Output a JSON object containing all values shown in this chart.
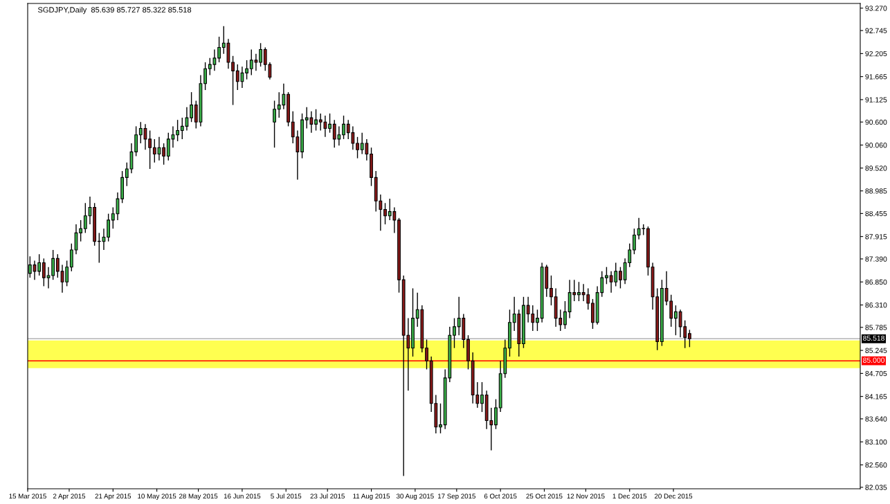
{
  "chart_data": {
    "type": "candlestick",
    "title": "SGDJPY,Daily  85.639 85.727 85.322 85.518",
    "x": [
      "2015-03-16",
      "2015-03-18",
      "2015-03-20",
      "2015-03-22",
      "2015-03-24",
      "2015-03-26",
      "2015-03-28",
      "2015-03-30",
      "2015-04-01",
      "2015-04-03",
      "2015-04-05",
      "2015-04-07",
      "2015-04-09",
      "2015-04-11",
      "2015-04-13",
      "2015-04-15",
      "2015-04-17",
      "2015-04-19",
      "2015-04-21",
      "2015-04-23",
      "2015-04-25",
      "2015-04-27",
      "2015-04-29",
      "2015-05-01",
      "2015-05-03",
      "2015-05-05",
      "2015-05-07",
      "2015-05-09",
      "2015-05-11",
      "2015-05-13",
      "2015-05-15",
      "2015-05-17",
      "2015-05-19",
      "2015-05-21",
      "2015-05-23",
      "2015-05-25",
      "2015-05-27",
      "2015-05-29",
      "2015-05-31",
      "2015-06-02",
      "2015-06-04",
      "2015-06-06",
      "2015-06-08",
      "2015-06-10",
      "2015-06-12",
      "2015-06-14",
      "2015-06-16",
      "2015-06-18",
      "2015-06-20",
      "2015-06-22",
      "2015-06-24",
      "2015-06-26",
      "2015-06-28",
      "2015-06-30",
      "2015-07-02",
      "2015-07-04",
      "2015-07-06",
      "2015-07-08",
      "2015-07-10",
      "2015-07-12",
      "2015-07-14",
      "2015-07-16",
      "2015-07-18",
      "2015-07-20",
      "2015-07-22",
      "2015-07-24",
      "2015-07-26",
      "2015-07-28",
      "2015-07-30",
      "2015-08-01",
      "2015-08-03",
      "2015-08-05",
      "2015-08-07",
      "2015-08-09",
      "2015-08-11",
      "2015-08-13",
      "2015-08-15",
      "2015-08-17",
      "2015-08-19",
      "2015-08-21",
      "2015-08-23",
      "2015-08-25",
      "2015-08-27",
      "2015-08-29",
      "2015-08-31",
      "2015-09-02",
      "2015-09-04",
      "2015-09-06",
      "2015-09-08",
      "2015-09-10",
      "2015-09-12",
      "2015-09-14",
      "2015-09-16",
      "2015-09-18",
      "2015-09-20",
      "2015-09-22",
      "2015-09-24",
      "2015-09-26",
      "2015-09-28",
      "2015-09-30",
      "2015-10-02",
      "2015-10-04",
      "2015-10-06",
      "2015-10-08",
      "2015-10-10",
      "2015-10-12",
      "2015-10-14",
      "2015-10-16",
      "2015-10-18",
      "2015-10-20",
      "2015-10-22",
      "2015-10-24",
      "2015-10-26",
      "2015-10-28",
      "2015-10-30",
      "2015-11-01",
      "2015-11-03",
      "2015-11-05",
      "2015-11-07",
      "2015-11-09",
      "2015-11-11",
      "2015-11-13",
      "2015-11-15",
      "2015-11-17",
      "2015-11-19",
      "2015-11-21",
      "2015-11-23",
      "2015-11-25",
      "2015-11-27",
      "2015-11-29",
      "2015-12-01",
      "2015-12-03",
      "2015-12-05",
      "2015-12-07",
      "2015-12-09",
      "2015-12-11",
      "2015-12-13",
      "2015-12-15",
      "2015-12-17",
      "2015-12-19",
      "2015-12-21",
      "2015-12-23",
      "2015-12-25",
      "2015-12-27"
    ],
    "ohlc": [
      [
        87.05,
        87.45,
        86.95,
        87.25
      ],
      [
        87.25,
        87.35,
        86.9,
        87.1
      ],
      [
        87.1,
        87.5,
        87.0,
        87.3
      ],
      [
        87.3,
        87.4,
        86.75,
        86.95
      ],
      [
        86.95,
        87.2,
        86.7,
        87.0
      ],
      [
        87.0,
        87.6,
        86.9,
        87.4
      ],
      [
        87.4,
        87.5,
        86.95,
        87.1
      ],
      [
        87.1,
        87.25,
        86.6,
        86.85
      ],
      [
        86.85,
        87.35,
        86.75,
        87.2
      ],
      [
        87.2,
        87.75,
        87.1,
        87.6
      ],
      [
        87.6,
        88.2,
        87.5,
        88.0
      ],
      [
        88.0,
        88.3,
        87.8,
        88.1
      ],
      [
        88.1,
        88.7,
        88.0,
        88.4
      ],
      [
        88.4,
        88.85,
        88.2,
        88.6
      ],
      [
        88.6,
        88.7,
        87.7,
        87.8
      ],
      [
        87.8,
        88.0,
        87.3,
        87.8
      ],
      [
        87.8,
        88.1,
        87.6,
        87.9
      ],
      [
        87.9,
        88.45,
        87.8,
        88.3
      ],
      [
        88.3,
        88.6,
        88.1,
        88.45
      ],
      [
        88.45,
        88.95,
        88.3,
        88.8
      ],
      [
        88.8,
        89.45,
        88.7,
        89.3
      ],
      [
        89.3,
        89.65,
        89.1,
        89.5
      ],
      [
        89.5,
        90.1,
        89.4,
        89.9
      ],
      [
        89.9,
        90.5,
        89.8,
        90.3
      ],
      [
        90.3,
        90.6,
        90.1,
        90.45
      ],
      [
        90.45,
        90.55,
        89.95,
        90.2
      ],
      [
        90.2,
        90.4,
        89.5,
        90.0
      ],
      [
        90.0,
        90.2,
        89.65,
        89.85
      ],
      [
        89.85,
        90.25,
        89.7,
        90.0
      ],
      [
        90.0,
        90.1,
        89.6,
        89.8
      ],
      [
        89.8,
        90.35,
        89.7,
        90.2
      ],
      [
        90.2,
        90.5,
        90.0,
        90.3
      ],
      [
        90.3,
        90.65,
        90.15,
        90.4
      ],
      [
        90.4,
        90.7,
        90.2,
        90.5
      ],
      [
        90.5,
        90.95,
        90.4,
        90.7
      ],
      [
        90.7,
        91.3,
        90.6,
        91.0
      ],
      [
        91.0,
        91.1,
        90.45,
        90.6
      ],
      [
        90.6,
        91.7,
        90.5,
        91.5
      ],
      [
        91.5,
        92.0,
        91.35,
        91.85
      ],
      [
        91.85,
        92.1,
        91.7,
        91.95
      ],
      [
        91.95,
        92.3,
        91.8,
        92.1
      ],
      [
        92.1,
        92.6,
        92.0,
        92.35
      ],
      [
        92.35,
        92.85,
        92.2,
        92.45
      ],
      [
        92.45,
        92.55,
        91.85,
        92.0
      ],
      [
        92.0,
        92.15,
        91.0,
        91.8
      ],
      [
        91.8,
        91.95,
        91.35,
        91.55
      ],
      [
        91.55,
        91.9,
        91.4,
        91.75
      ],
      [
        91.75,
        92.05,
        91.6,
        91.85
      ],
      [
        91.85,
        92.3,
        91.7,
        92.05
      ],
      [
        92.05,
        92.2,
        91.8,
        92.0
      ],
      [
        92.0,
        92.45,
        91.9,
        92.3
      ],
      [
        92.3,
        92.35,
        91.8,
        91.95
      ],
      [
        91.95,
        92.0,
        91.6,
        91.65
      ],
      [
        90.6,
        91.1,
        90.0,
        90.9
      ],
      [
        90.9,
        91.3,
        90.7,
        91.0
      ],
      [
        91.0,
        91.5,
        90.9,
        91.25
      ],
      [
        91.25,
        91.3,
        90.5,
        90.6
      ],
      [
        90.6,
        90.85,
        90.1,
        90.25
      ],
      [
        90.25,
        90.4,
        89.25,
        89.9
      ],
      [
        89.9,
        90.8,
        89.75,
        90.65
      ],
      [
        90.65,
        90.95,
        90.45,
        90.7
      ],
      [
        90.7,
        90.85,
        90.35,
        90.55
      ],
      [
        90.55,
        90.9,
        90.4,
        90.65
      ],
      [
        90.65,
        90.8,
        90.4,
        90.6
      ],
      [
        90.6,
        90.75,
        90.25,
        90.45
      ],
      [
        90.45,
        90.8,
        90.35,
        90.55
      ],
      [
        90.55,
        90.65,
        90.0,
        90.2
      ],
      [
        90.2,
        90.5,
        90.05,
        90.3
      ],
      [
        90.3,
        90.75,
        90.2,
        90.55
      ],
      [
        90.55,
        90.65,
        90.2,
        90.35
      ],
      [
        90.35,
        90.5,
        89.95,
        90.1
      ],
      [
        90.1,
        90.25,
        89.75,
        89.95
      ],
      [
        89.95,
        90.35,
        89.85,
        90.1
      ],
      [
        90.1,
        90.2,
        89.7,
        89.85
      ],
      [
        89.85,
        90.0,
        89.1,
        89.3
      ],
      [
        89.3,
        89.45,
        88.5,
        88.75
      ],
      [
        88.75,
        88.9,
        88.05,
        88.55
      ],
      [
        88.55,
        88.7,
        88.2,
        88.4
      ],
      [
        88.4,
        88.8,
        88.3,
        88.5
      ],
      [
        88.5,
        88.6,
        88.0,
        88.3
      ],
      [
        88.3,
        88.35,
        86.6,
        86.9
      ],
      [
        86.9,
        87.0,
        82.3,
        85.6
      ],
      [
        85.6,
        86.0,
        84.3,
        85.3
      ],
      [
        85.3,
        86.7,
        85.1,
        86.0
      ],
      [
        86.0,
        86.6,
        85.8,
        86.2
      ],
      [
        86.2,
        86.3,
        85.2,
        85.3
      ],
      [
        85.3,
        85.5,
        84.8,
        85.0
      ],
      [
        85.0,
        85.1,
        83.8,
        84.0
      ],
      [
        84.0,
        84.2,
        83.3,
        83.45
      ],
      [
        83.45,
        84.0,
        83.3,
        83.5
      ],
      [
        83.5,
        84.8,
        83.4,
        84.6
      ],
      [
        84.6,
        85.8,
        84.5,
        85.6
      ],
      [
        85.6,
        86.0,
        85.3,
        85.8
      ],
      [
        85.8,
        86.5,
        85.6,
        86.0
      ],
      [
        86.0,
        86.1,
        85.3,
        85.5
      ],
      [
        85.5,
        85.6,
        84.8,
        85.0
      ],
      [
        85.0,
        85.2,
        84.0,
        84.2
      ],
      [
        84.2,
        84.5,
        83.9,
        84.0
      ],
      [
        84.0,
        84.5,
        83.8,
        84.2
      ],
      [
        84.2,
        84.3,
        83.4,
        83.6
      ],
      [
        83.6,
        83.9,
        82.9,
        83.5
      ],
      [
        83.5,
        84.1,
        83.4,
        83.9
      ],
      [
        83.9,
        85.0,
        83.8,
        84.7
      ],
      [
        84.7,
        85.5,
        84.6,
        85.3
      ],
      [
        85.3,
        86.2,
        85.1,
        85.9
      ],
      [
        85.9,
        86.5,
        85.7,
        86.1
      ],
      [
        86.1,
        86.2,
        85.1,
        85.4
      ],
      [
        85.4,
        86.5,
        85.3,
        86.3
      ],
      [
        86.3,
        86.5,
        85.9,
        86.1
      ],
      [
        86.1,
        86.3,
        85.7,
        85.9
      ],
      [
        85.9,
        86.2,
        85.7,
        86.0
      ],
      [
        86.0,
        87.3,
        85.9,
        87.2
      ],
      [
        87.2,
        87.25,
        86.5,
        86.7
      ],
      [
        86.7,
        87.0,
        86.3,
        86.5
      ],
      [
        86.5,
        86.7,
        85.8,
        86.0
      ],
      [
        86.0,
        86.2,
        85.7,
        85.85
      ],
      [
        85.85,
        86.4,
        85.75,
        86.15
      ],
      [
        86.15,
        86.9,
        86.0,
        86.6
      ],
      [
        86.6,
        86.9,
        86.4,
        86.55
      ],
      [
        86.55,
        86.85,
        86.4,
        86.6
      ],
      [
        86.6,
        86.8,
        86.4,
        86.55
      ],
      [
        86.55,
        86.7,
        86.2,
        86.35
      ],
      [
        86.35,
        86.45,
        85.75,
        85.9
      ],
      [
        85.9,
        86.75,
        85.85,
        86.6
      ],
      [
        86.6,
        87.1,
        86.5,
        86.95
      ],
      [
        86.95,
        87.2,
        86.8,
        87.0
      ],
      [
        87.0,
        87.1,
        86.6,
        86.85
      ],
      [
        86.85,
        87.3,
        86.75,
        87.1
      ],
      [
        87.1,
        87.2,
        86.7,
        86.9
      ],
      [
        86.9,
        87.4,
        86.8,
        87.3
      ],
      [
        87.3,
        87.75,
        87.2,
        87.6
      ],
      [
        87.6,
        88.1,
        87.5,
        87.95
      ],
      [
        87.95,
        88.35,
        87.85,
        88.1
      ],
      [
        88.1,
        88.2,
        87.95,
        88.1
      ],
      [
        88.1,
        88.15,
        87.0,
        87.2
      ],
      [
        87.2,
        87.3,
        86.2,
        86.5
      ],
      [
        86.5,
        86.7,
        85.25,
        85.45
      ],
      [
        85.45,
        86.9,
        85.35,
        86.7
      ],
      [
        86.7,
        87.1,
        86.3,
        86.4
      ],
      [
        86.4,
        86.55,
        85.8,
        86.0
      ],
      [
        86.0,
        86.3,
        85.6,
        86.15
      ],
      [
        86.15,
        86.2,
        85.55,
        85.8
      ],
      [
        85.8,
        85.95,
        85.3,
        85.55
      ],
      [
        85.639,
        85.727,
        85.322,
        85.518
      ]
    ],
    "colors": [
      "#3cb44b",
      "#8b1a1a",
      "#3cb44b",
      "#8b1a1a",
      "#3cb44b",
      "#3cb44b",
      "#8b1a1a",
      "#8b1a1a",
      "#3cb44b",
      "#3cb44b",
      "#3cb44b",
      "#3cb44b",
      "#3cb44b",
      "#3cb44b",
      "#8b1a1a",
      "#3cb44b",
      "#3cb44b",
      "#3cb44b",
      "#3cb44b",
      "#3cb44b",
      "#3cb44b",
      "#3cb44b",
      "#3cb44b",
      "#3cb44b",
      "#3cb44b",
      "#8b1a1a",
      "#8b1a1a",
      "#8b1a1a",
      "#3cb44b",
      "#8b1a1a",
      "#3cb44b",
      "#3cb44b",
      "#3cb44b",
      "#3cb44b",
      "#3cb44b",
      "#3cb44b",
      "#8b1a1a",
      "#3cb44b",
      "#3cb44b",
      "#3cb44b",
      "#3cb44b",
      "#3cb44b",
      "#3cb44b",
      "#8b1a1a",
      "#8b1a1a",
      "#8b1a1a",
      "#3cb44b",
      "#3cb44b",
      "#3cb44b",
      "#8b1a1a",
      "#3cb44b",
      "#8b1a1a",
      "#8b1a1a",
      "#3cb44b",
      "#3cb44b",
      "#3cb44b",
      "#8b1a1a",
      "#8b1a1a",
      "#8b1a1a",
      "#3cb44b",
      "#3cb44b",
      "#8b1a1a",
      "#3cb44b",
      "#8b1a1a",
      "#8b1a1a",
      "#3cb44b",
      "#8b1a1a",
      "#3cb44b",
      "#3cb44b",
      "#8b1a1a",
      "#8b1a1a",
      "#8b1a1a",
      "#3cb44b",
      "#8b1a1a",
      "#8b1a1a",
      "#8b1a1a",
      "#8b1a1a",
      "#8b1a1a",
      "#3cb44b",
      "#8b1a1a",
      "#8b1a1a",
      "#8b1a1a",
      "#8b1a1a",
      "#3cb44b",
      "#3cb44b",
      "#8b1a1a",
      "#8b1a1a",
      "#8b1a1a",
      "#8b1a1a",
      "#3cb44b",
      "#3cb44b",
      "#3cb44b",
      "#3cb44b",
      "#3cb44b",
      "#8b1a1a",
      "#8b1a1a",
      "#8b1a1a",
      "#8b1a1a",
      "#3cb44b",
      "#8b1a1a",
      "#8b1a1a",
      "#3cb44b",
      "#3cb44b",
      "#3cb44b",
      "#3cb44b",
      "#3cb44b",
      "#8b1a1a",
      "#3cb44b",
      "#8b1a1a",
      "#8b1a1a",
      "#3cb44b",
      "#3cb44b",
      "#8b1a1a",
      "#8b1a1a",
      "#8b1a1a",
      "#8b1a1a",
      "#3cb44b",
      "#3cb44b",
      "#8b1a1a",
      "#3cb44b",
      "#8b1a1a",
      "#8b1a1a",
      "#8b1a1a",
      "#3cb44b",
      "#3cb44b",
      "#3cb44b",
      "#8b1a1a",
      "#3cb44b",
      "#8b1a1a",
      "#3cb44b",
      "#3cb44b",
      "#3cb44b",
      "#3cb44b",
      "#3cb44b",
      "#8b1a1a",
      "#8b1a1a",
      "#8b1a1a",
      "#3cb44b",
      "#8b1a1a",
      "#8b1a1a",
      "#3cb44b",
      "#8b1a1a",
      "#8b1a1a",
      "#8b1a1a"
    ],
    "xlim": [
      "2015-03-15",
      "2016-03-10"
    ],
    "xticks": [
      {
        "value": "2015-03-15",
        "label": "15 Mar 2015"
      },
      {
        "value": "2015-04-02",
        "label": "2 Apr 2015"
      },
      {
        "value": "2015-04-21",
        "label": "21 Apr 2015"
      },
      {
        "value": "2015-05-10",
        "label": "10 May 2015"
      },
      {
        "value": "2015-05-28",
        "label": "28 May 2015"
      },
      {
        "value": "2015-06-16",
        "label": "16 Jun 2015"
      },
      {
        "value": "2015-07-05",
        "label": "5 Jul 2015"
      },
      {
        "value": "2015-07-23",
        "label": "23 Jul 2015"
      },
      {
        "value": "2015-08-11",
        "label": "11 Aug 2015"
      },
      {
        "value": "2015-08-30",
        "label": "30 Aug 2015"
      },
      {
        "value": "2015-09-17",
        "label": "17 Sep 2015"
      },
      {
        "value": "2015-10-06",
        "label": "6 Oct 2015"
      },
      {
        "value": "2015-10-25",
        "label": "25 Oct 2015"
      },
      {
        "value": "2015-11-12",
        "label": "12 Nov 2015"
      },
      {
        "value": "2015-12-01",
        "label": "1 Dec 2015"
      },
      {
        "value": "2015-12-20",
        "label": "20 Dec 2015"
      }
    ],
    "ylim": [
      82.0,
      93.38
    ],
    "yticks": [
      {
        "value": 93.27,
        "label": "93.270"
      },
      {
        "value": 92.745,
        "label": "92.745"
      },
      {
        "value": 92.205,
        "label": "92.205"
      },
      {
        "value": 91.665,
        "label": "91.665"
      },
      {
        "value": 91.125,
        "label": "91.125"
      },
      {
        "value": 90.6,
        "label": "90.600"
      },
      {
        "value": 90.06,
        "label": "90.060"
      },
      {
        "value": 89.52,
        "label": "89.520"
      },
      {
        "value": 88.985,
        "label": "88.985"
      },
      {
        "value": 88.455,
        "label": "88.455"
      },
      {
        "value": 87.915,
        "label": "87.915"
      },
      {
        "value": 87.39,
        "label": "87.390"
      },
      {
        "value": 86.85,
        "label": "86.850"
      },
      {
        "value": 86.31,
        "label": "86.310"
      },
      {
        "value": 85.785,
        "label": "85.785"
      },
      {
        "value": 85.245,
        "label": "85.245"
      },
      {
        "value": 84.705,
        "label": "84.705"
      },
      {
        "value": 84.165,
        "label": "84.165"
      },
      {
        "value": 83.64,
        "label": "83.640"
      },
      {
        "value": 83.1,
        "label": "83.100"
      },
      {
        "value": 82.56,
        "label": "82.560"
      },
      {
        "value": 82.035,
        "label": "82.035"
      }
    ],
    "ref_lines": [
      {
        "axis": "y",
        "value": 85.518,
        "label": "85.518",
        "color": "#b4b4b4"
      },
      {
        "axis": "y",
        "value": 85.0,
        "label": "85.000",
        "color": "#ff0000"
      }
    ],
    "bands": [
      {
        "axis": "y",
        "from": 84.83,
        "to": 85.48,
        "color": "#ffff50"
      }
    ],
    "grid": false
  }
}
